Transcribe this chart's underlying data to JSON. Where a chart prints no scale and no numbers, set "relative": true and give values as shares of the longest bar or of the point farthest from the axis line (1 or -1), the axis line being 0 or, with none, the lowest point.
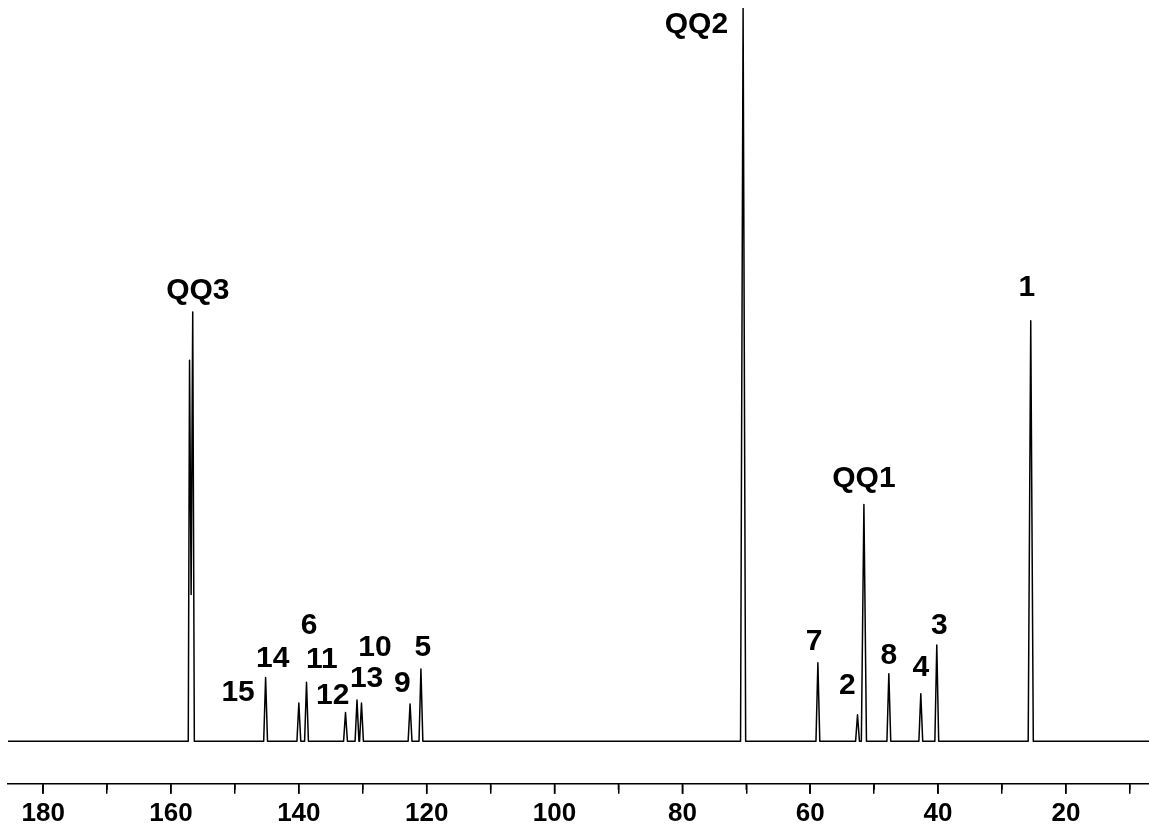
{
  "chart_data": {
    "type": "line",
    "relative": true,
    "xlim": [
      185.5,
      7
    ],
    "xticks": [
      180,
      {
        "value": 170,
        "label": null
      },
      160,
      {
        "value": 150,
        "label": null
      },
      140,
      {
        "value": 130,
        "label": null
      },
      120,
      {
        "value": 110,
        "label": null
      },
      100,
      {
        "value": 90,
        "label": null
      },
      80,
      {
        "value": 70,
        "label": null
      },
      60,
      {
        "value": 50,
        "label": null
      },
      40,
      {
        "value": 30,
        "label": null
      },
      20,
      {
        "value": 10,
        "label": null
      }
    ],
    "grid": false,
    "legend": false,
    "marker": "none",
    "line_style": "solid",
    "tick_labels": "x",
    "series": [
      {
        "color": "#000000",
        "x": [
          185.5,
          157.3,
          157.1,
          156.85,
          156.6,
          156.35,
          145.5,
          145.2,
          144.9,
          140.3,
          140.0,
          139.7,
          139.1,
          138.8,
          138.5,
          133.0,
          132.7,
          132.4,
          131.2,
          130.9,
          130.6,
          130.5,
          130.2,
          129.9,
          122.9,
          122.6,
          122.3,
          121.2,
          120.9,
          120.6,
          70.9,
          70.5,
          70.1,
          59.1,
          58.8,
          58.5,
          52.9,
          52.6,
          52.3,
          52.0,
          51.6,
          51.2,
          48.0,
          47.7,
          47.4,
          43.0,
          42.7,
          42.4,
          40.5,
          40.2,
          39.9,
          25.9,
          25.5,
          25.1,
          7
        ],
        "values": [
          0.055,
          0.055,
          0.546,
          0.244,
          0.608,
          0.055,
          0.055,
          0.137,
          0.055,
          0.055,
          0.104,
          0.055,
          0.055,
          0.131,
          0.055,
          0.055,
          0.092,
          0.055,
          0.055,
          0.108,
          0.055,
          0.055,
          0.104,
          0.055,
          0.055,
          0.103,
          0.055,
          0.055,
          0.148,
          0.055,
          0.055,
          1,
          0.055,
          0.055,
          0.156,
          0.055,
          0.055,
          0.089,
          0.055,
          0.055,
          0.36,
          0.055,
          0.055,
          0.142,
          0.055,
          0.055,
          0.116,
          0.055,
          0.055,
          0.179,
          0.055,
          0.055,
          0.597,
          0.055,
          0.055
        ]
      }
    ],
    "annotations": [
      "QQ3",
      "QQ2",
      "1",
      "QQ1",
      "7",
      "2",
      "8",
      "4",
      "3",
      "15",
      "14",
      "6",
      "11",
      "12",
      "13",
      "10",
      "9",
      "5"
    ]
  }
}
